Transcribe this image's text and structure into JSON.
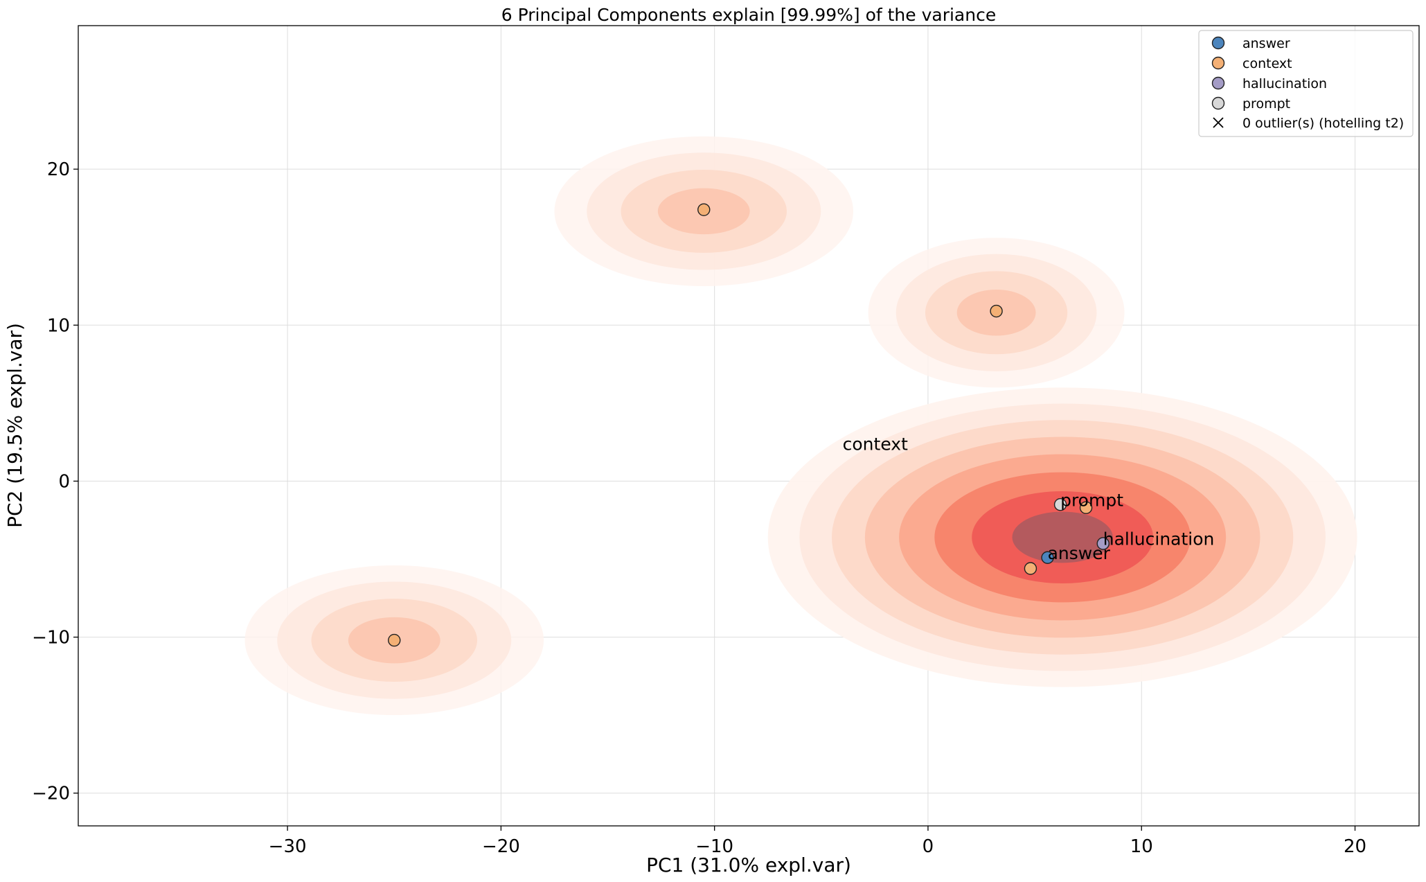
{
  "chart_data": {
    "type": "scatter",
    "title": "6 Principal Components explain [99.99%] of the variance",
    "xlabel": "PC1 (31.0% expl.var)",
    "ylabel": "PC2 (19.5% expl.var)",
    "xlim": [
      -39.8,
      23.0
    ],
    "ylim": [
      -22.1,
      29.2
    ],
    "xticks": [
      -30,
      -20,
      -10,
      0,
      10,
      20
    ],
    "xtick_labels": [
      "−30",
      "−20",
      "−10",
      "0",
      "10",
      "20"
    ],
    "yticks": [
      -20,
      -10,
      0,
      10,
      20
    ],
    "ytick_labels": [
      "−20",
      "−10",
      "0",
      "10",
      "20"
    ],
    "grid": true,
    "legend_position": "top-right",
    "series": [
      {
        "name": "answer",
        "color": "#4c85bd",
        "points": [
          {
            "x": 5.6,
            "y": -4.9
          }
        ]
      },
      {
        "name": "context",
        "color": "#f4b075",
        "points": [
          {
            "x": -10.5,
            "y": 17.4
          },
          {
            "x": 3.2,
            "y": 10.9
          },
          {
            "x": -25.0,
            "y": -10.2
          },
          {
            "x": 7.4,
            "y": -1.7
          },
          {
            "x": 4.8,
            "y": -5.6
          }
        ]
      },
      {
        "name": "hallucination",
        "color": "#a49cc6",
        "points": [
          {
            "x": 8.2,
            "y": -4.0
          }
        ]
      },
      {
        "name": "prompt",
        "color": "#d8d8d8",
        "points": [
          {
            "x": 6.2,
            "y": -1.5
          }
        ]
      }
    ],
    "outlier_legend": "0 outlier(s) (hotelling t2)",
    "annotations": [
      {
        "text": "context",
        "x": -4.0,
        "y": 2.0
      },
      {
        "text": "prompt",
        "x": 6.2,
        "y": -1.6
      },
      {
        "text": "hallucination",
        "x": 8.2,
        "y": -4.1
      },
      {
        "text": "answer",
        "x": 5.6,
        "y": -5.0
      }
    ],
    "density": {
      "palette": "reds",
      "blobs": [
        {
          "cx": 6.3,
          "cy": -3.6,
          "rx": 13.8,
          "ry": 9.6,
          "weight": 1.0
        },
        {
          "cx": 3.2,
          "cy": 10.8,
          "rx": 6.0,
          "ry": 4.8,
          "weight": 0.32
        },
        {
          "cx": -10.5,
          "cy": 17.3,
          "rx": 7.0,
          "ry": 4.8,
          "weight": 0.32
        },
        {
          "cx": -25.0,
          "cy": -10.2,
          "rx": 7.0,
          "ry": 4.8,
          "weight": 0.32
        }
      ]
    }
  }
}
